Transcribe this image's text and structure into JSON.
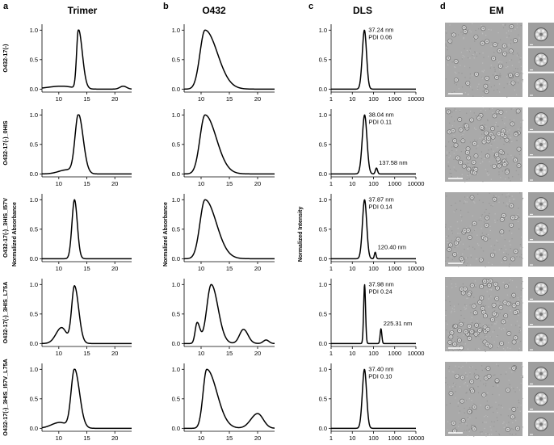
{
  "panel_letters": [
    "a",
    "b",
    "c",
    "d"
  ],
  "column_titles": [
    "Trimer",
    "O432",
    "DLS",
    "EM"
  ],
  "row_labels": [
    "O432-17(-)",
    "O432-17(-)_0HIS",
    "O432-17(-)_3HIS_I57V",
    "O432-17(-)_3HIS_L75A",
    "O432-17(-)_3HIS_I57V_L75A"
  ],
  "y_axis_labels": {
    "trimer": "Normalized Absorbance",
    "o432": "Normalized Absorbance",
    "dls": "Normalized Intensity"
  },
  "sec_y_ticks": [
    "0.0",
    "0.5",
    "1.0"
  ],
  "sec_x_ticks": [
    "10",
    "15",
    "20"
  ],
  "dls_y_ticks": [
    "0.0",
    "0.5",
    "1.0"
  ],
  "dls_x_ticks": [
    "1",
    "10",
    "100",
    "1000",
    "10000"
  ],
  "dls_annotations": [
    {
      "size": "37.24 nm",
      "pdi": "PDI 0.06",
      "secondary": ""
    },
    {
      "size": "38.04 nm",
      "pdi": "PDI 0.11",
      "secondary": "137.58 nm"
    },
    {
      "size": "37.87 nm",
      "pdi": "PDI 0.14",
      "secondary": "120.40 nm"
    },
    {
      "size": "37.98 nm",
      "pdi": "PDI 0.24",
      "secondary": "225.31 nm"
    },
    {
      "size": "37.40 nm",
      "pdi": "PDI 0.10",
      "secondary": ""
    }
  ],
  "em_images": [
    {
      "row": 0,
      "particle_density": "sparse",
      "classes": 3
    },
    {
      "row": 1,
      "particle_density": "dense",
      "classes": 3
    },
    {
      "row": 2,
      "particle_density": "sparse",
      "classes": 3
    },
    {
      "row": 3,
      "particle_density": "dense",
      "classes": 3
    },
    {
      "row": 4,
      "particle_density": "sparse",
      "classes": 3
    }
  ],
  "chart_data": [
    {
      "type": "line",
      "column": "trimer",
      "xlim": [
        7,
        23
      ],
      "ylim": [
        -0.05,
        1.1
      ],
      "series": [
        {
          "peaks": [
            {
              "center": 13.5,
              "amp": 1.0,
              "wl": 0.32,
              "wr": 0.7
            },
            {
              "center": 10.5,
              "amp": 0.05,
              "wl": 2.5,
              "wr": 2.0
            },
            {
              "center": 21.5,
              "amp": 0.05,
              "wl": 0.6,
              "wr": 0.6
            }
          ]
        },
        {
          "peaks": [
            {
              "center": 13.5,
              "amp": 1.0,
              "wl": 0.6,
              "wr": 0.85
            },
            {
              "center": 11.5,
              "amp": 0.07,
              "wl": 1.5,
              "wr": 1.2
            }
          ]
        },
        {
          "peaks": [
            {
              "center": 12.8,
              "amp": 1.0,
              "wl": 0.45,
              "wr": 0.5
            }
          ]
        },
        {
          "peaks": [
            {
              "center": 12.8,
              "amp": 0.97,
              "wl": 0.5,
              "wr": 0.75
            },
            {
              "center": 10.5,
              "amp": 0.27,
              "wl": 1.0,
              "wr": 0.9
            }
          ]
        },
        {
          "peaks": [
            {
              "center": 12.8,
              "amp": 1.0,
              "wl": 0.6,
              "wr": 0.9
            },
            {
              "center": 10.2,
              "amp": 0.1,
              "wl": 1.5,
              "wr": 1.2
            }
          ]
        }
      ]
    },
    {
      "type": "line",
      "column": "o432",
      "xlim": [
        7,
        23
      ],
      "ylim": [
        -0.05,
        1.1
      ],
      "series": [
        {
          "peaks": [
            {
              "center": 10.7,
              "amp": 1.0,
              "wl": 0.9,
              "wr": 2.2
            }
          ]
        },
        {
          "peaks": [
            {
              "center": 10.7,
              "amp": 1.0,
              "wl": 0.9,
              "wr": 2.0
            }
          ]
        },
        {
          "peaks": [
            {
              "center": 10.7,
              "amp": 1.0,
              "wl": 0.9,
              "wr": 2.0
            }
          ]
        },
        {
          "peaks": [
            {
              "center": 11.8,
              "amp": 1.0,
              "wl": 0.8,
              "wr": 1.2
            },
            {
              "center": 9.3,
              "amp": 0.35,
              "wl": 0.35,
              "wr": 0.5
            },
            {
              "center": 17.5,
              "amp": 0.24,
              "wl": 0.7,
              "wr": 0.8
            },
            {
              "center": 21.5,
              "amp": 0.06,
              "wl": 0.5,
              "wr": 0.5
            }
          ]
        },
        {
          "peaks": [
            {
              "center": 11.0,
              "amp": 1.0,
              "wl": 0.65,
              "wr": 1.8
            },
            {
              "center": 20.0,
              "amp": 0.25,
              "wl": 1.2,
              "wr": 1.0
            }
          ]
        }
      ]
    },
    {
      "type": "line",
      "column": "dls",
      "x_scale": "log",
      "xlim": [
        1,
        10000
      ],
      "ylim": [
        -0.05,
        1.1
      ],
      "series": [
        {
          "peaks": [
            {
              "center": 37.24,
              "amp": 1.0,
              "w": 0.1
            }
          ]
        },
        {
          "peaks": [
            {
              "center": 38.04,
              "amp": 1.0,
              "w": 0.11
            },
            {
              "center": 137.58,
              "amp": 0.1,
              "w": 0.05
            }
          ]
        },
        {
          "peaks": [
            {
              "center": 37.87,
              "amp": 1.0,
              "w": 0.1
            },
            {
              "center": 120.4,
              "amp": 0.11,
              "w": 0.04
            }
          ]
        },
        {
          "peaks": [
            {
              "center": 37.98,
              "amp": 1.0,
              "w": 0.045
            },
            {
              "center": 225.31,
              "amp": 0.25,
              "w": 0.04
            }
          ]
        },
        {
          "peaks": [
            {
              "center": 37.4,
              "amp": 1.0,
              "w": 0.1
            }
          ]
        }
      ]
    }
  ]
}
